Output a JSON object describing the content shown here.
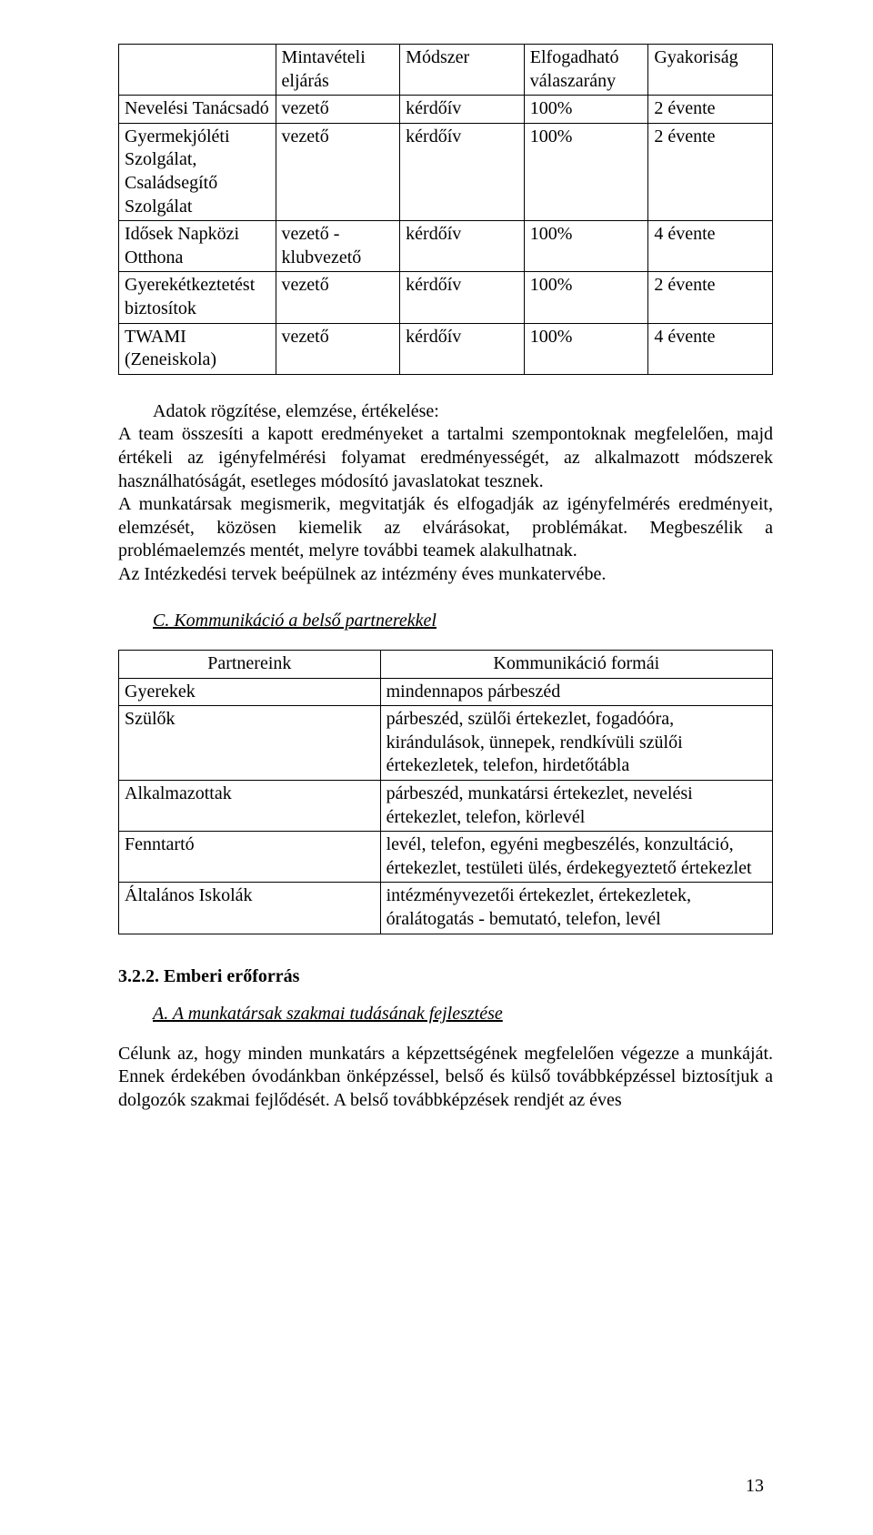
{
  "table1": {
    "headers": [
      "",
      "Mintavételi eljárás",
      "Módszer",
      "Elfogadható válaszarány",
      "Gyakoriság"
    ],
    "rows": [
      [
        "Nevelési Tanácsadó",
        "vezető",
        "kérdőív",
        "100%",
        "2 évente"
      ],
      [
        "Gyermekjóléti Szolgálat, Családsegítő Szolgálat",
        "vezető",
        "kérdőív",
        "100%",
        "2 évente"
      ],
      [
        "Idősek  Napközi Otthona",
        "vezető - klubvezető",
        "kérdőív",
        "100%",
        "4 évente"
      ],
      [
        "Gyerekétkeztetést biztosítok",
        "vezető",
        "kérdőív",
        "100%",
        "2 évente"
      ],
      [
        "TWAMI (Zeneiskola)",
        "vezető",
        "kérdőív",
        "100%",
        "4 évente"
      ]
    ]
  },
  "para": {
    "lead": "Adatok rögzítése, elemzése, értékelése:",
    "p1": "A team összesíti a kapott eredményeket a tartalmi szempontoknak megfelelően, majd értékeli az igényfelmérési folyamat eredményességét, az alkalmazott módszerek használhatóságát, esetleges módosító javaslatokat tesznek.",
    "p2": "A munkatársak megismerik, megvitatják és elfogadják az igényfelmérés eredményeit, elemzését, közösen kiemelik az elvárásokat, problémákat. Megbeszélik a problémaelemzés mentét, melyre további teamek alakulhatnak.",
    "p3": "Az Intézkedési tervek beépülnek az intézmény éves munkatervébe."
  },
  "sectionC": "C. Kommunikáció a belső partnerekkel",
  "table2": {
    "headers": [
      "Partnereink",
      "Kommunikáció formái"
    ],
    "rows": [
      [
        "Gyerekek",
        "mindennapos párbeszéd"
      ],
      [
        "Szülők",
        "párbeszéd, szülői értekezlet, fogadóóra, kirándulások, ünnepek, rendkívüli szülői értekezletek, telefon, hirdetőtábla"
      ],
      [
        "Alkalmazottak",
        "párbeszéd, munkatársi értekezlet, nevelési értekezlet, telefon, körlevél"
      ],
      [
        "Fenntartó",
        "levél, telefon, egyéni megbeszélés, konzultáció, értekezlet, testületi ülés, érdekegyeztető értekezlet"
      ],
      [
        "Általános Iskolák",
        "intézményvezetői értekezlet, értekezletek, óralátogatás - bemutató, telefon, levél"
      ]
    ]
  },
  "heading322": "3.2.2. Emberi erőforrás",
  "sectionA": "A. A munkatársak szakmai tudásának fejlesztése",
  "closing": "Célunk az, hogy minden munkatárs a képzettségének megfelelően végezze a munkáját. Ennek érdekében óvodánkban önképzéssel, belső és külső továbbképzéssel biztosítjuk a dolgozók szakmai fejlődését. A belső továbbképzések rendjét az éves",
  "pageNumber": "13"
}
